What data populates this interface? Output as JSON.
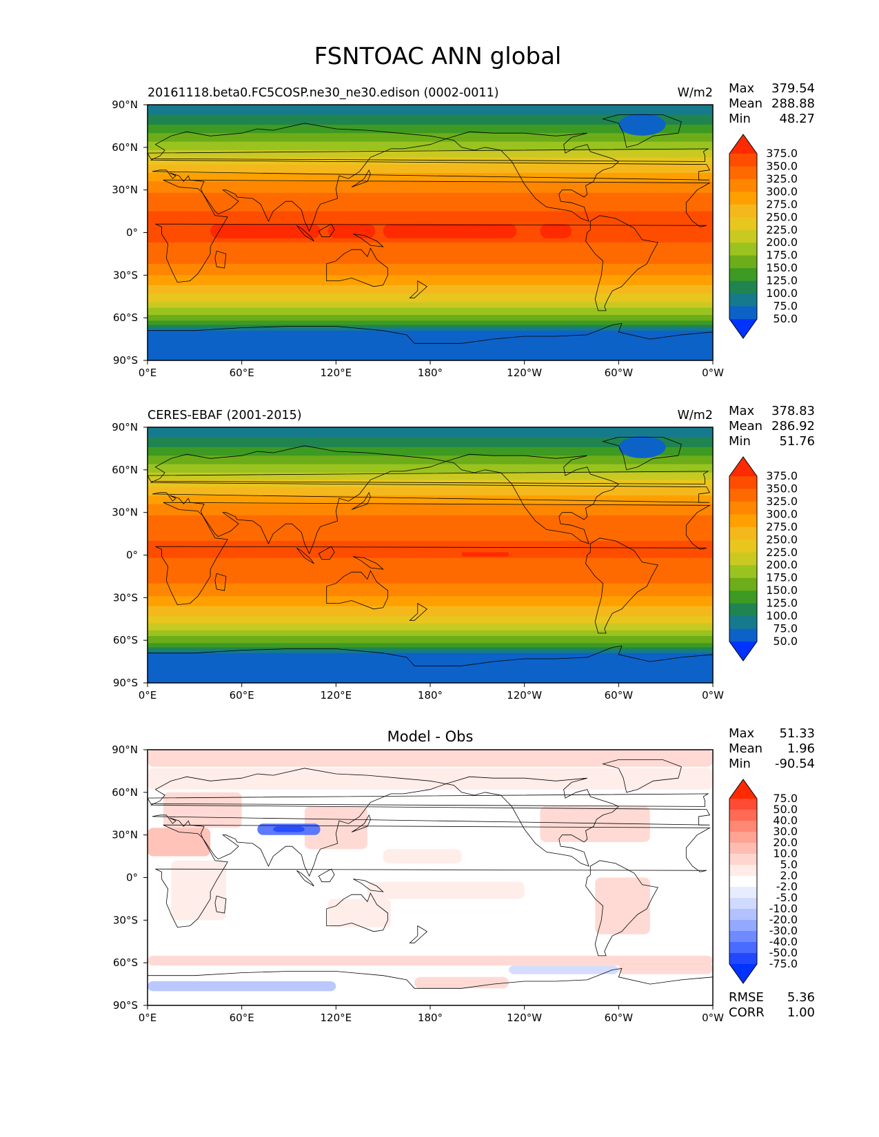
{
  "figure": {
    "title": "FSNTOAC ANN global"
  },
  "chart_data": [
    {
      "type": "heatmap",
      "title": "",
      "left_title": "20161118.beta0.FC5COSP.ne30_ne30.edison (0002-0011)",
      "units": "W/m2",
      "stats": [
        {
          "label": "Max",
          "value": "379.54"
        },
        {
          "label": "Mean",
          "value": "288.88"
        },
        {
          "label": "Min",
          "value": "48.27"
        }
      ],
      "colorbar_levels": [
        "375.0",
        "350.0",
        "325.0",
        "300.0",
        "275.0",
        "250.0",
        "225.0",
        "200.0",
        "175.0",
        "150.0",
        "125.0",
        "100.0",
        "75.0",
        "50.0"
      ],
      "colorbar_colors": [
        "#ff2a00",
        "#ff4d00",
        "#ff6a00",
        "#ff8600",
        "#ffa000",
        "#f5b81c",
        "#e8c61e",
        "#c9c922",
        "#9ac31f",
        "#6cad19",
        "#3d9a22",
        "#1f8450",
        "#167a8d",
        "#0d62c8",
        "#0033ff"
      ],
      "x_ticks": [
        "0°E",
        "60°E",
        "120°E",
        "180°",
        "120°W",
        "60°W",
        "0°W"
      ],
      "y_ticks": [
        "90°N",
        "60°N",
        "30°N",
        "0°",
        "30°S",
        "60°S",
        "90°S"
      ],
      "xlim": [
        0,
        360
      ],
      "ylim": [
        -90,
        90
      ],
      "zonal_profile": {
        "lat": [
          90,
          80,
          70,
          60,
          50,
          40,
          30,
          20,
          10,
          0,
          -10,
          -20,
          -30,
          -40,
          -50,
          -60,
          -65,
          -70,
          -80,
          -90
        ],
        "value": [
          80,
          110,
          150,
          190,
          240,
          285,
          320,
          345,
          355,
          360,
          345,
          330,
          300,
          265,
          220,
          160,
          130,
          60,
          55,
          50
        ]
      }
    },
    {
      "type": "heatmap",
      "title": "",
      "left_title": "CERES-EBAF (2001-2015)",
      "units": "W/m2",
      "stats": [
        {
          "label": "Max",
          "value": "378.83"
        },
        {
          "label": "Mean",
          "value": "286.92"
        },
        {
          "label": "Min",
          "value": "51.76"
        }
      ],
      "colorbar_levels": [
        "375.0",
        "350.0",
        "325.0",
        "300.0",
        "275.0",
        "250.0",
        "225.0",
        "200.0",
        "175.0",
        "150.0",
        "125.0",
        "100.0",
        "75.0",
        "50.0"
      ],
      "colorbar_colors": [
        "#ff2a00",
        "#ff4d00",
        "#ff6a00",
        "#ff8600",
        "#ffa000",
        "#f5b81c",
        "#e8c61e",
        "#c9c922",
        "#9ac31f",
        "#6cad19",
        "#3d9a22",
        "#1f8450",
        "#167a8d",
        "#0d62c8",
        "#0033ff"
      ],
      "x_ticks": [
        "0°E",
        "60°E",
        "120°E",
        "180°",
        "120°W",
        "60°W",
        "0°W"
      ],
      "y_ticks": [
        "90°N",
        "60°N",
        "30°N",
        "0°",
        "30°S",
        "60°S",
        "90°S"
      ],
      "xlim": [
        0,
        360
      ],
      "ylim": [
        -90,
        90
      ],
      "zonal_profile": {
        "lat": [
          90,
          80,
          70,
          60,
          50,
          40,
          30,
          20,
          10,
          0,
          -10,
          -20,
          -30,
          -40,
          -50,
          -60,
          -65,
          -70,
          -80,
          -90
        ],
        "value": [
          80,
          110,
          150,
          190,
          240,
          285,
          320,
          340,
          350,
          352,
          340,
          325,
          298,
          262,
          218,
          160,
          130,
          62,
          58,
          55
        ]
      }
    },
    {
      "type": "heatmap",
      "title": "Model - Obs",
      "left_title": "",
      "units": "",
      "stats": [
        {
          "label": "Max",
          "value": "51.33"
        },
        {
          "label": "Mean",
          "value": "1.96"
        },
        {
          "label": "Min",
          "value": "-90.54"
        }
      ],
      "extra_stats": [
        {
          "label": "RMSE",
          "value": "5.36"
        },
        {
          "label": "CORR",
          "value": "1.00"
        }
      ],
      "colorbar_levels": [
        "75.0",
        "50.0",
        "40.0",
        "30.0",
        "20.0",
        "10.0",
        "5.0",
        "2.0",
        "-2.0",
        "-5.0",
        "-10.0",
        "-20.0",
        "-30.0",
        "-40.0",
        "-50.0",
        "-75.0"
      ],
      "colorbar_colors": [
        "#ff2a00",
        "#ff4b33",
        "#ff6a55",
        "#ff8874",
        "#ffa394",
        "#ffbdb2",
        "#ffd6cf",
        "#ffebe8",
        "#ffffff",
        "#e8ecff",
        "#d0d9ff",
        "#b3c2ff",
        "#93a8ff",
        "#6f8aff",
        "#4a6bff",
        "#2248ff",
        "#0033ff"
      ],
      "x_ticks": [
        "0°E",
        "60°E",
        "120°E",
        "180°",
        "120°W",
        "60°W",
        "0°W"
      ],
      "y_ticks": [
        "90°N",
        "60°N",
        "30°N",
        "0°",
        "30°S",
        "60°S",
        "90°S"
      ],
      "xlim": [
        0,
        360
      ],
      "ylim": [
        -90,
        90
      ]
    }
  ]
}
